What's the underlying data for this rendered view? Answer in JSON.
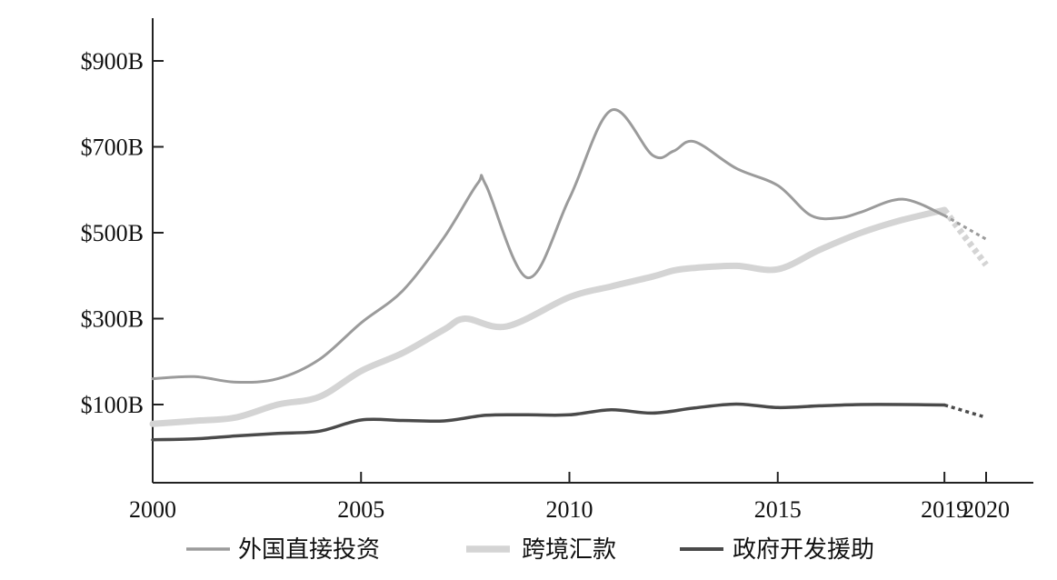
{
  "chart_data": {
    "type": "line",
    "title": "",
    "xlabel": "",
    "ylabel": "",
    "xlim": [
      2000,
      2020
    ],
    "ylim": [
      -80,
      1000
    ],
    "grid": false,
    "legend_position": "bottom",
    "x_ticks": [
      {
        "value": 2000,
        "label": "2000"
      },
      {
        "value": 2005,
        "label": "2005"
      },
      {
        "value": 2010,
        "label": "2010"
      },
      {
        "value": 2015,
        "label": "2015"
      },
      {
        "value": 2019,
        "label": "2019"
      },
      {
        "value": 2020,
        "label": "2020"
      }
    ],
    "y_ticks": [
      {
        "value": 100,
        "label": "$100B"
      },
      {
        "value": 300,
        "label": "$300B"
      },
      {
        "value": 500,
        "label": "$500B"
      },
      {
        "value": 700,
        "label": "$700B"
      },
      {
        "value": 900,
        "label": "$900B"
      }
    ],
    "projection_from_x": 2019,
    "series": [
      {
        "name": "外国直接投资",
        "color": "#9b9b9b",
        "weight": "thin",
        "points": [
          [
            2000,
            160
          ],
          [
            2001,
            165
          ],
          [
            2002,
            152
          ],
          [
            2003,
            160
          ],
          [
            2004,
            205
          ],
          [
            2005,
            290
          ],
          [
            2006,
            365
          ],
          [
            2007,
            490
          ],
          [
            2007.8,
            615
          ],
          [
            2008,
            610
          ],
          [
            2009,
            395
          ],
          [
            2010,
            580
          ],
          [
            2011,
            785
          ],
          [
            2012,
            680
          ],
          [
            2012.5,
            690
          ],
          [
            2013,
            712
          ],
          [
            2014,
            650
          ],
          [
            2015,
            610
          ],
          [
            2015.8,
            540
          ],
          [
            2016.5,
            535
          ],
          [
            2017,
            548
          ],
          [
            2018,
            578
          ],
          [
            2019,
            540
          ],
          [
            2020,
            485
          ]
        ]
      },
      {
        "name": "跨境汇款",
        "color": "#d4d4d4",
        "weight": "thick",
        "points": [
          [
            2000,
            55
          ],
          [
            2001,
            62
          ],
          [
            2002,
            70
          ],
          [
            2003,
            100
          ],
          [
            2004,
            118
          ],
          [
            2005,
            178
          ],
          [
            2006,
            220
          ],
          [
            2007,
            275
          ],
          [
            2007.5,
            300
          ],
          [
            2008.5,
            282
          ],
          [
            2010,
            350
          ],
          [
            2011,
            375
          ],
          [
            2012,
            398
          ],
          [
            2012.5,
            412
          ],
          [
            2013,
            418
          ],
          [
            2014,
            423
          ],
          [
            2015,
            415
          ],
          [
            2016,
            460
          ],
          [
            2017,
            500
          ],
          [
            2018,
            530
          ],
          [
            2019,
            553
          ],
          [
            2020,
            425
          ]
        ]
      },
      {
        "name": "政府开发援助",
        "color": "#4a4a4a",
        "weight": "medium",
        "points": [
          [
            2000,
            18
          ],
          [
            2001,
            20
          ],
          [
            2002,
            27
          ],
          [
            2003,
            33
          ],
          [
            2004,
            38
          ],
          [
            2005,
            64
          ],
          [
            2006,
            63
          ],
          [
            2007,
            62
          ],
          [
            2008,
            75
          ],
          [
            2009,
            76
          ],
          [
            2010,
            76
          ],
          [
            2011,
            88
          ],
          [
            2012,
            80
          ],
          [
            2013,
            92
          ],
          [
            2014,
            101
          ],
          [
            2015,
            93
          ],
          [
            2016,
            97
          ],
          [
            2017,
            100
          ],
          [
            2018,
            100
          ],
          [
            2019,
            99
          ],
          [
            2020,
            70
          ]
        ]
      }
    ]
  }
}
